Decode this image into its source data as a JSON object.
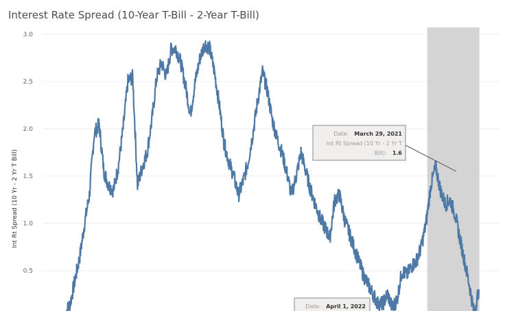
{
  "chart_data": {
    "type": "line",
    "title": "Interest Rate Spread (10-Year T-Bill - 2-Year T-Bill)",
    "ylabel": "Int Rt Spread (10 Yr - 2 Yr T Bill)",
    "xlabel": "",
    "ylim": [
      0,
      3.0
    ],
    "yticks": [
      "0.5",
      "1.0",
      "1.5",
      "2.0",
      "2.5",
      "3.0"
    ],
    "grid": "horizontal",
    "line_color": "#4e79a7",
    "band_color": "#d4d4d4",
    "series": [
      {
        "values": [
          0.05,
          0.15,
          0.4,
          0.65,
          1.0,
          1.3,
          1.95,
          2.05,
          1.55,
          1.4,
          1.35,
          1.6,
          2.0,
          2.5,
          2.55,
          1.4,
          1.6,
          1.75,
          2.1,
          2.55,
          2.7,
          2.55,
          2.85,
          2.85,
          2.7,
          2.45,
          2.15,
          2.5,
          2.75,
          2.9,
          2.85,
          2.6,
          2.25,
          1.85,
          1.65,
          1.5,
          1.3,
          1.45,
          1.65,
          1.95,
          2.3,
          2.6,
          2.4,
          2.1,
          1.9,
          1.75,
          1.55,
          1.3,
          1.5,
          1.75,
          1.55,
          1.35,
          1.2,
          1.05,
          0.95,
          0.85,
          1.25,
          1.3,
          1.05,
          0.9,
          0.75,
          0.6,
          0.45,
          0.35,
          0.25,
          0.15,
          0.15,
          0.25,
          0.1,
          0.2,
          0.5,
          0.45,
          0.55,
          0.6,
          0.75,
          1.0,
          1.4,
          1.6,
          1.35,
          1.2,
          1.25,
          1.1,
          0.85,
          0.6,
          0.35,
          0.05,
          0.3
        ]
      }
    ],
    "highlight_band": {
      "x_start": 0.842,
      "x_end": 0.956
    },
    "tooltips": [
      {
        "date_label": "Date:",
        "date_value": "March 29, 2021",
        "metric_label_1": "Int Rt Spread (10 Yr - 2 Yr T",
        "metric_label_2": "Bill):",
        "metric_value": "1.6",
        "anchor_x": 0.905,
        "anchor_y": 1.55
      },
      {
        "date_label": "Date:",
        "date_value": "April 1, 2022"
      }
    ]
  }
}
